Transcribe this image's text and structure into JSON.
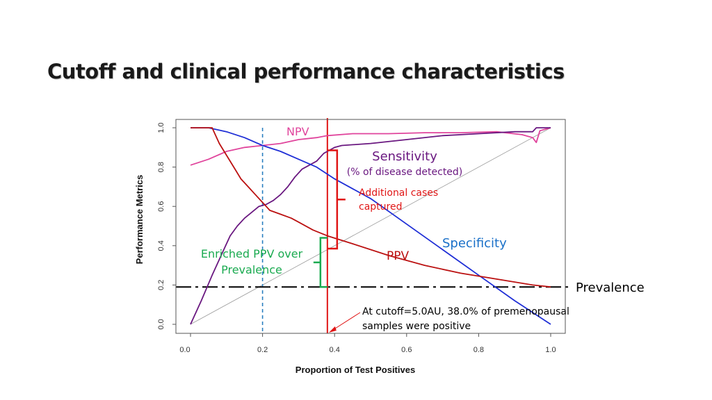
{
  "slide": {
    "title": "Cutoff and clinical performance characteristics"
  },
  "chart_data": {
    "type": "line",
    "title": "Cutoff and clinical performance characteristics",
    "xlabel": "Proportion of Test Positives",
    "ylabel": "Performance Metrics",
    "xlim": [
      0,
      1
    ],
    "ylim": [
      0,
      1
    ],
    "x_ticks": [
      "0.0",
      "0.2",
      "0.4",
      "0.6",
      "0.8",
      "1.0"
    ],
    "y_ticks": [
      "0.0",
      "0.2",
      "0.4",
      "0.6",
      "0.8",
      "1.0"
    ],
    "colors": {
      "npv": "#e0449c",
      "sensitivity": "#6a1880",
      "specificity": "#1f2fd6",
      "ppv": "#bb1010",
      "diagonal": "#9a9a9a",
      "prevalence": "#000000",
      "cutoff": "#e01515",
      "enriched": "#1aaa50",
      "blue_dash": "#2a7fc0"
    },
    "series": [
      {
        "name": "NPV",
        "key": "npv",
        "x": [
          0.0,
          0.05,
          0.1,
          0.15,
          0.2,
          0.25,
          0.3,
          0.35,
          0.38,
          0.45,
          0.55,
          0.65,
          0.75,
          0.85,
          0.92,
          0.95,
          0.96,
          0.97,
          1.0
        ],
        "values": [
          0.81,
          0.84,
          0.88,
          0.9,
          0.91,
          0.92,
          0.94,
          0.95,
          0.96,
          0.97,
          0.97,
          0.975,
          0.975,
          0.98,
          0.965,
          0.95,
          0.925,
          0.985,
          1.0
        ]
      },
      {
        "name": "Sensitivity",
        "key": "sensitivity",
        "x": [
          0.0,
          0.03,
          0.06,
          0.09,
          0.11,
          0.13,
          0.15,
          0.17,
          0.19,
          0.21,
          0.23,
          0.25,
          0.27,
          0.29,
          0.31,
          0.33,
          0.35,
          0.37,
          0.39,
          0.4,
          0.42,
          0.5,
          0.6,
          0.7,
          0.8,
          0.9,
          0.95,
          0.96,
          1.0
        ],
        "values": [
          0.0,
          0.12,
          0.25,
          0.37,
          0.45,
          0.5,
          0.54,
          0.57,
          0.6,
          0.61,
          0.63,
          0.66,
          0.7,
          0.75,
          0.79,
          0.81,
          0.83,
          0.87,
          0.89,
          0.9,
          0.91,
          0.92,
          0.94,
          0.96,
          0.97,
          0.98,
          0.98,
          1.0,
          1.0
        ]
      },
      {
        "name": "Specificity",
        "key": "specificity",
        "x": [
          0.0,
          0.05,
          0.1,
          0.15,
          0.2,
          0.25,
          0.3,
          0.35,
          0.4,
          0.5,
          0.6,
          0.7,
          0.8,
          0.9,
          1.0
        ],
        "values": [
          1.0,
          1.0,
          0.98,
          0.95,
          0.91,
          0.88,
          0.84,
          0.8,
          0.74,
          0.64,
          0.51,
          0.38,
          0.25,
          0.12,
          0.0
        ]
      },
      {
        "name": "PPV",
        "key": "ppv",
        "x": [
          0.0,
          0.06,
          0.08,
          0.1,
          0.12,
          0.14,
          0.16,
          0.18,
          0.2,
          0.22,
          0.25,
          0.28,
          0.3,
          0.34,
          0.38,
          0.45,
          0.55,
          0.65,
          0.75,
          0.85,
          0.95,
          1.0
        ],
        "values": [
          1.0,
          1.0,
          0.92,
          0.86,
          0.8,
          0.74,
          0.7,
          0.66,
          0.62,
          0.58,
          0.56,
          0.54,
          0.52,
          0.48,
          0.45,
          0.41,
          0.35,
          0.3,
          0.26,
          0.23,
          0.2,
          0.19
        ]
      }
    ],
    "reference_lines": [
      {
        "name": "Prevalence",
        "orientation": "horizontal",
        "value": 0.19
      },
      {
        "name": "Cutoff",
        "orientation": "vertical",
        "value": 0.38
      },
      {
        "name": "Reference",
        "orientation": "vertical",
        "value": 0.2
      },
      {
        "name": "Diagonal",
        "from": [
          0,
          0
        ],
        "to": [
          1,
          1
        ]
      }
    ],
    "annotations": {
      "npv": "NPV",
      "sensitivity": "Sensitivity",
      "sensitivity_sub": "(% of disease detected)",
      "additional_1": "Additional cases",
      "additional_2": "captured",
      "specificity": "Specificity",
      "ppv": "PPV",
      "enriched_1": "Enriched PPV over",
      "enriched_2": "Prevalence",
      "prevalence": "Prevalence",
      "cutoff_1": "At cutoff=5.0AU, 38.0% of premenopausal",
      "cutoff_2": "samples were positive"
    }
  }
}
